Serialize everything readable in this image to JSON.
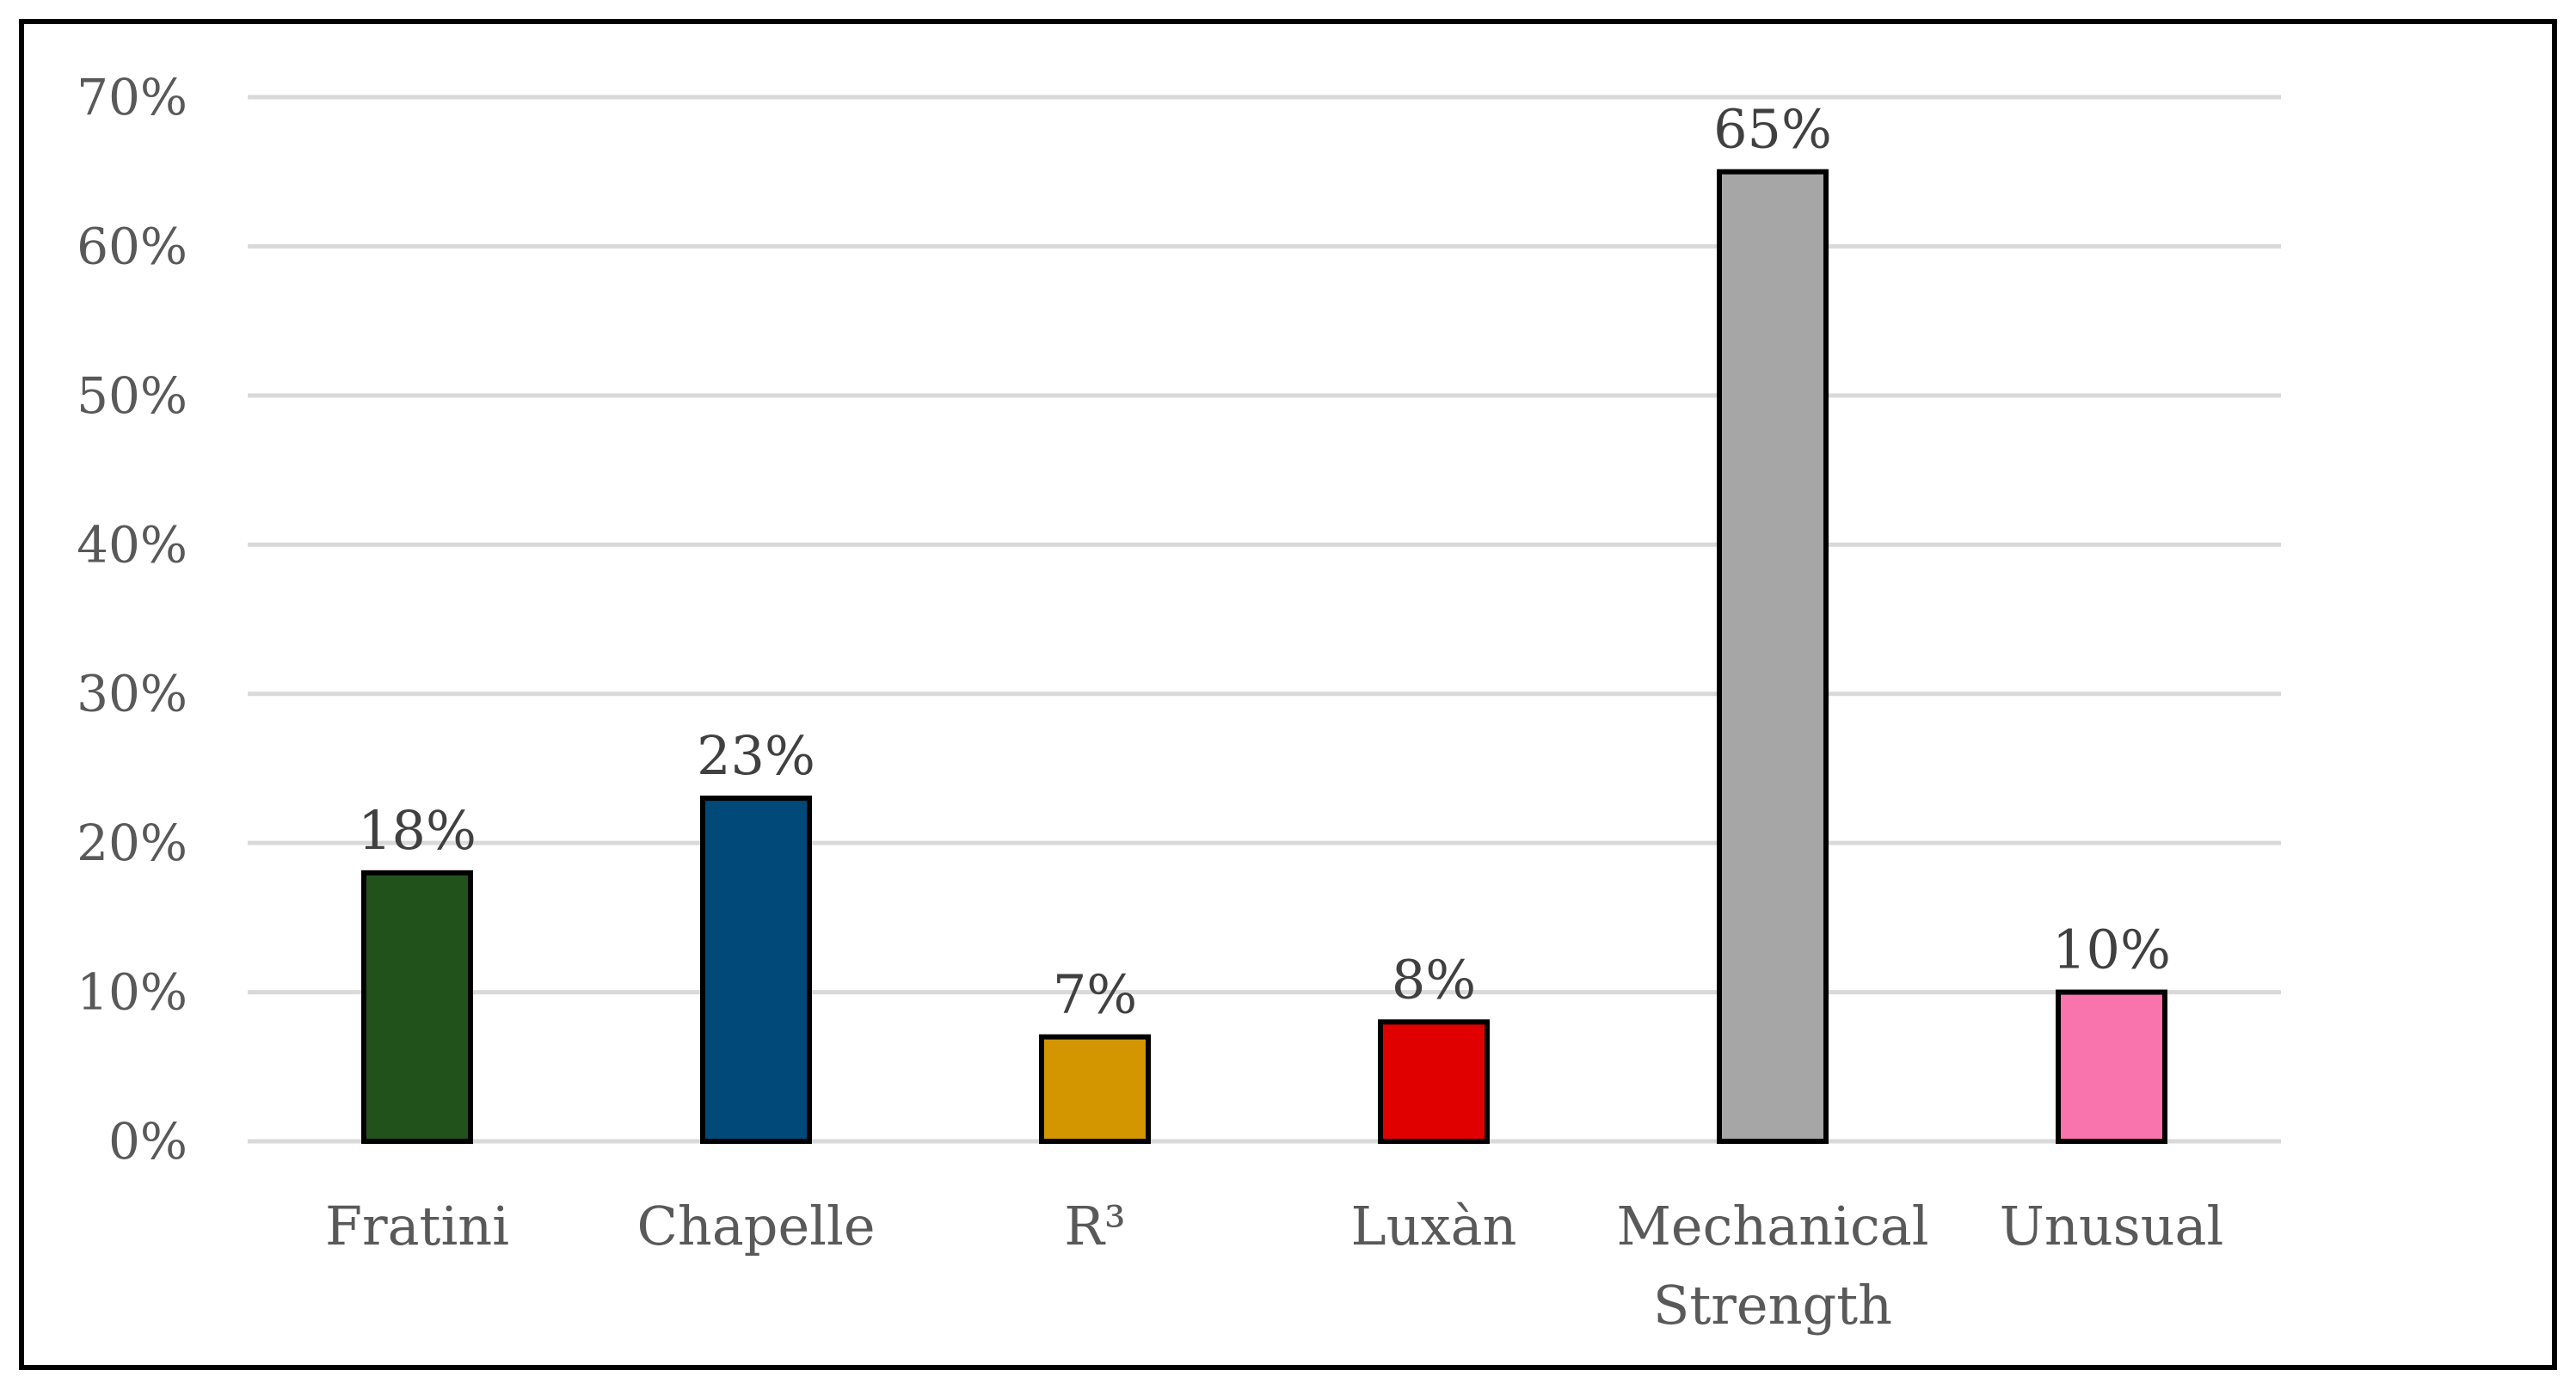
{
  "chart_data": {
    "type": "bar",
    "title": "",
    "xlabel": "",
    "ylabel": "",
    "categories": [
      [
        "Fratini"
      ],
      [
        "Chapelle"
      ],
      [
        "R³"
      ],
      [
        "Luxàn"
      ],
      [
        "Mechanical",
        "Strength"
      ],
      [
        "Unusual"
      ]
    ],
    "values": [
      18,
      23,
      7,
      8,
      65,
      10
    ],
    "value_labels": [
      "18%",
      "23%",
      "7%",
      "8%",
      "65%",
      "10%"
    ],
    "colors": [
      "#21521b",
      "#004978",
      "#d39600",
      "#e00000",
      "#a6a6a6",
      "#f974ad"
    ],
    "ylim": [
      0,
      70
    ],
    "yticks": [
      0,
      10,
      20,
      30,
      40,
      50,
      60,
      70
    ],
    "ytick_labels": [
      "0%",
      "10%",
      "20%",
      "30%",
      "40%",
      "50%",
      "60%",
      "70%"
    ],
    "grid": true,
    "legend": false,
    "gridline_color": "#d9d9d9",
    "bar_outline_color": "#000000"
  }
}
